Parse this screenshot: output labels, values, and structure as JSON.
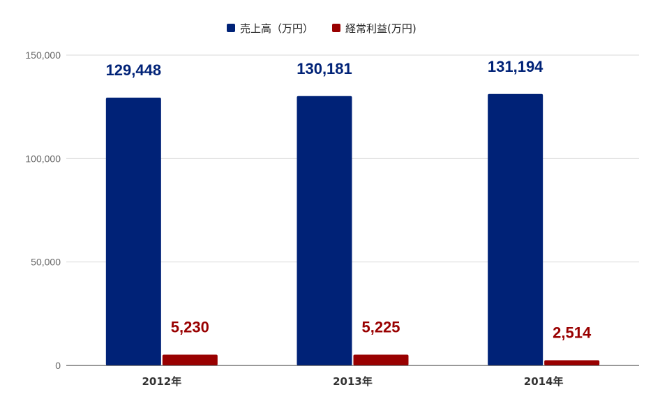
{
  "chart_data": {
    "type": "bar",
    "categories": [
      "2012年",
      "2013年",
      "2014年"
    ],
    "series": [
      {
        "name": "売上高（万円）",
        "color": "#002277",
        "values": [
          129448,
          130181,
          131194
        ]
      },
      {
        "name": "経常利益(万円)",
        "color": "#990000",
        "values": [
          5230,
          5225,
          2514
        ]
      }
    ],
    "data_labels": [
      [
        "129,448",
        "130,181",
        "131,194"
      ],
      [
        "5,230",
        "5,225",
        "2,514"
      ]
    ],
    "yticks": [
      "0",
      "50,000",
      "100,000",
      "150,000"
    ],
    "ytick_values": [
      0,
      50000,
      100000,
      150000
    ],
    "ylim": [
      0,
      150000
    ],
    "grid": true,
    "legend_position": "top-center"
  }
}
